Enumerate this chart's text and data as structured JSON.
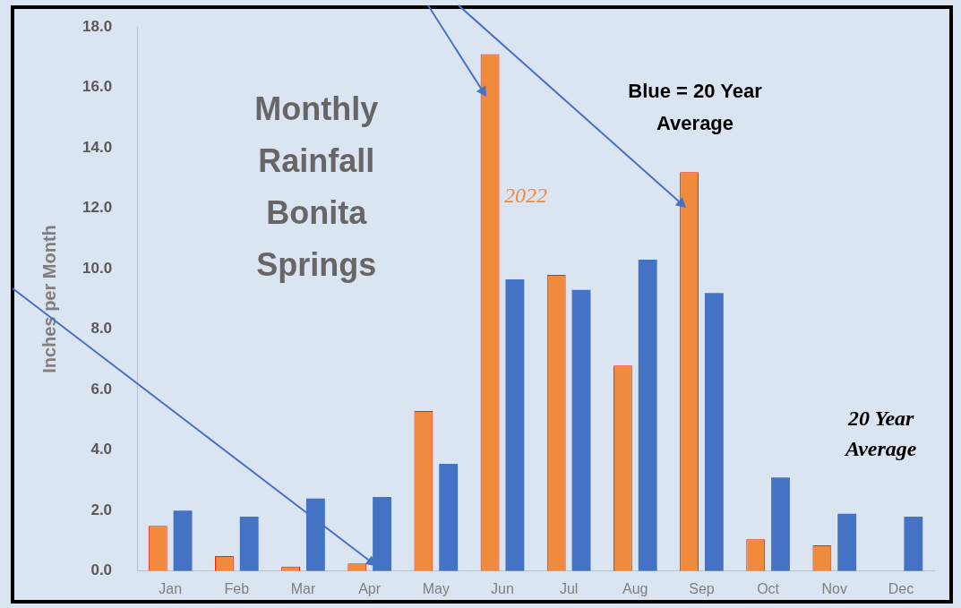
{
  "chart_data": {
    "type": "bar",
    "title": "Monthly Rainfall Bonita Springs",
    "ylabel": "Inches per Month",
    "categories": [
      "Jan",
      "Feb",
      "Mar",
      "Apr",
      "May",
      "Jun",
      "Jul",
      "Aug",
      "Sep",
      "Oct",
      "Nov",
      "Dec"
    ],
    "series": [
      {
        "name": "2022",
        "color": "#f08a3c",
        "values": [
          1.5,
          0.5,
          0.15,
          0.25,
          5.3,
          17.1,
          9.8,
          6.8,
          13.2,
          1.05,
          0.85,
          null
        ]
      },
      {
        "name": "20 Year Average",
        "color": "#4472c4",
        "values": [
          2.0,
          1.8,
          2.4,
          2.45,
          3.55,
          9.65,
          9.3,
          10.3,
          9.2,
          3.1,
          1.9,
          1.8
        ]
      }
    ],
    "ylim": [
      0,
      18
    ],
    "yticks": [
      {
        "value": 0,
        "label": "0.0"
      },
      {
        "value": 2,
        "label": "2.0"
      },
      {
        "value": 4,
        "label": "4.0"
      },
      {
        "value": 6,
        "label": "6.0"
      },
      {
        "value": 8,
        "label": "8.0"
      },
      {
        "value": 10,
        "label": "10.0"
      },
      {
        "value": 12,
        "label": "12.0"
      },
      {
        "value": 14,
        "label": "14.0"
      },
      {
        "value": 16,
        "label": "16.0"
      },
      {
        "value": 18,
        "label": "18.0"
      }
    ],
    "annotations": [
      "Blue = 20 Year Average"
    ],
    "grid": false,
    "legend": false
  }
}
